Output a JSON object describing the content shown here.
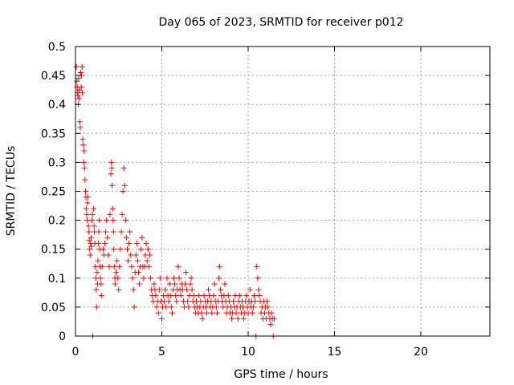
{
  "chart_data": {
    "type": "scatter",
    "title": "Day 065 of 2023, SRMTID for receiver p012",
    "xlabel": "GPS time / hours",
    "ylabel": "SRMTID / TECUs",
    "xlim": [
      0,
      24
    ],
    "ylim": [
      0,
      0.5
    ],
    "x_ticks": [
      0,
      5,
      10,
      15,
      20
    ],
    "y_ticks": [
      0,
      0.05,
      0.1,
      0.15,
      0.2,
      0.25,
      0.3,
      0.35,
      0.4,
      0.45,
      0.5
    ],
    "x_tick_labels": [
      "0",
      "5",
      "10",
      "15",
      "20"
    ],
    "y_tick_labels": [
      "0",
      "0.05",
      "0.1",
      "0.15",
      "0.2",
      "0.25",
      "0.3",
      "0.35",
      "0.4",
      "0.45",
      "0.5"
    ],
    "grid": true,
    "marker": "+",
    "series": [
      {
        "name": "SRMTID",
        "color": "#ff0000",
        "points": [
          [
            0.05,
            0.465
          ],
          [
            0.08,
            0.44
          ],
          [
            0.1,
            0.43
          ],
          [
            0.12,
            0.42
          ],
          [
            0.14,
            0.415
          ],
          [
            0.16,
            0.4
          ],
          [
            0.18,
            0.445
          ],
          [
            0.2,
            0.41
          ],
          [
            0.22,
            0.425
          ],
          [
            0.25,
            0.37
          ],
          [
            0.28,
            0.36
          ],
          [
            0.3,
            0.455
          ],
          [
            0.33,
            0.43
          ],
          [
            0.35,
            0.45
          ],
          [
            0.38,
            0.465
          ],
          [
            0.4,
            0.42
          ],
          [
            0.42,
            0.34
          ],
          [
            0.45,
            0.33
          ],
          [
            0.48,
            0.3
          ],
          [
            0.5,
            0.32
          ],
          [
            0.52,
            0.29
          ],
          [
            0.55,
            0.27
          ],
          [
            0.58,
            0.25
          ],
          [
            0.6,
            0.24
          ],
          [
            0.62,
            0.22
          ],
          [
            0.65,
            0.21
          ],
          [
            0.68,
            0.2
          ],
          [
            0.7,
            0.23
          ],
          [
            0.72,
            0.24
          ],
          [
            0.75,
            0.19
          ],
          [
            0.78,
            0.18
          ],
          [
            0.8,
            0.165
          ],
          [
            0.82,
            0.15
          ],
          [
            0.85,
            0.14
          ],
          [
            0.88,
            0.16
          ],
          [
            0.9,
            0.17
          ],
          [
            0.92,
            0.155
          ],
          [
            0.95,
            0.2
          ],
          [
            0.98,
            0.21
          ],
          [
            1.0,
            0.0
          ],
          [
            1.05,
            0.22
          ],
          [
            1.08,
            0.19
          ],
          [
            1.1,
            0.18
          ],
          [
            1.12,
            0.16
          ],
          [
            1.15,
            0.12
          ],
          [
            1.18,
            0.1
          ],
          [
            1.2,
            0.08
          ],
          [
            1.22,
            0.05
          ],
          [
            1.25,
            0.11
          ],
          [
            1.28,
            0.09
          ],
          [
            1.3,
            0.13
          ],
          [
            1.33,
            0.16
          ],
          [
            1.35,
            0.18
          ],
          [
            1.38,
            0.2
          ],
          [
            1.4,
            0.15
          ],
          [
            1.42,
            0.12
          ],
          [
            1.45,
            0.1
          ],
          [
            1.48,
            0.09
          ],
          [
            1.5,
            0.07
          ],
          [
            1.55,
            0.12
          ],
          [
            1.6,
            0.15
          ],
          [
            1.65,
            0.14
          ],
          [
            1.7,
            0.16
          ],
          [
            1.75,
            0.18
          ],
          [
            1.8,
            0.2
          ],
          [
            1.85,
            0.17
          ],
          [
            1.9,
            0.14
          ],
          [
            1.95,
            0.12
          ],
          [
            2.0,
            0.21
          ],
          [
            2.05,
            0.28
          ],
          [
            2.08,
            0.3
          ],
          [
            2.1,
            0.29
          ],
          [
            2.12,
            0.26
          ],
          [
            2.15,
            0.22
          ],
          [
            2.18,
            0.2
          ],
          [
            2.2,
            0.18
          ],
          [
            2.22,
            0.15
          ],
          [
            2.25,
            0.12
          ],
          [
            2.28,
            0.1
          ],
          [
            2.3,
            0.09
          ],
          [
            2.35,
            0.11
          ],
          [
            2.4,
            0.13
          ],
          [
            2.45,
            0.1
          ],
          [
            2.5,
            0.08
          ],
          [
            2.55,
            0.12
          ],
          [
            2.6,
            0.15
          ],
          [
            2.65,
            0.18
          ],
          [
            2.7,
            0.21
          ],
          [
            2.75,
            0.25
          ],
          [
            2.8,
            0.29
          ],
          [
            2.85,
            0.26
          ],
          [
            2.9,
            0.2
          ],
          [
            2.95,
            0.17
          ],
          [
            3.0,
            0.15
          ],
          [
            3.05,
            0.13
          ],
          [
            3.1,
            0.16
          ],
          [
            3.15,
            0.18
          ],
          [
            3.2,
            0.14
          ],
          [
            3.25,
            0.12
          ],
          [
            3.3,
            0.1
          ],
          [
            3.35,
            0.08
          ],
          [
            3.4,
            0.05
          ],
          [
            3.45,
            0.11
          ],
          [
            3.5,
            0.14
          ],
          [
            3.55,
            0.16
          ],
          [
            3.6,
            0.13
          ],
          [
            3.65,
            0.11
          ],
          [
            3.7,
            0.09
          ],
          [
            3.75,
            0.12
          ],
          [
            3.8,
            0.15
          ],
          [
            3.85,
            0.17
          ],
          [
            3.9,
            0.12
          ],
          [
            3.95,
            0.1
          ],
          [
            4.0,
            0.12
          ],
          [
            4.05,
            0.14
          ],
          [
            4.1,
            0.16
          ],
          [
            4.15,
            0.13
          ],
          [
            4.2,
            0.15
          ],
          [
            4.25,
            0.12
          ],
          [
            4.3,
            0.14
          ],
          [
            4.35,
            0.1
          ],
          [
            4.4,
            0.08
          ],
          [
            4.45,
            0.07
          ],
          [
            4.5,
            0.06
          ],
          [
            4.55,
            0.09
          ],
          [
            4.6,
            0.08
          ],
          [
            4.65,
            0.07
          ],
          [
            4.7,
            0.05
          ],
          [
            4.75,
            0.06
          ],
          [
            4.8,
            0.04
          ],
          [
            4.85,
            0.08
          ],
          [
            4.9,
            0.1
          ],
          [
            4.95,
            0.06
          ],
          [
            5.0,
            0.03
          ],
          [
            5.05,
            0.05
          ],
          [
            5.1,
            0.07
          ],
          [
            5.15,
            0.06
          ],
          [
            5.2,
            0.08
          ],
          [
            5.25,
            0.05
          ],
          [
            5.3,
            0.1
          ],
          [
            5.35,
            0.07
          ],
          [
            5.4,
            0.06
          ],
          [
            5.45,
            0.09
          ],
          [
            5.5,
            0.07
          ],
          [
            5.55,
            0.05
          ],
          [
            5.6,
            0.04
          ],
          [
            5.65,
            0.08
          ],
          [
            5.7,
            0.1
          ],
          [
            5.75,
            0.09
          ],
          [
            5.8,
            0.07
          ],
          [
            5.85,
            0.06
          ],
          [
            5.9,
            0.08
          ],
          [
            5.95,
            0.12
          ],
          [
            6.0,
            0.1
          ],
          [
            6.05,
            0.08
          ],
          [
            6.1,
            0.07
          ],
          [
            6.15,
            0.09
          ],
          [
            6.2,
            0.08
          ],
          [
            6.25,
            0.06
          ],
          [
            6.3,
            0.05
          ],
          [
            6.35,
            0.09
          ],
          [
            6.4,
            0.11
          ],
          [
            6.45,
            0.08
          ],
          [
            6.5,
            0.06
          ],
          [
            6.55,
            0.05
          ],
          [
            6.6,
            0.07
          ],
          [
            6.65,
            0.09
          ],
          [
            6.7,
            0.1
          ],
          [
            6.75,
            0.08
          ],
          [
            6.8,
            0.06
          ],
          [
            6.85,
            0.07
          ],
          [
            6.9,
            0.05
          ],
          [
            6.95,
            0.04
          ],
          [
            7.0,
            0.06
          ],
          [
            7.05,
            0.05
          ],
          [
            7.1,
            0.04
          ],
          [
            7.15,
            0.07
          ],
          [
            7.2,
            0.05
          ],
          [
            7.25,
            0.06
          ],
          [
            7.3,
            0.04
          ],
          [
            7.35,
            0.03
          ],
          [
            7.4,
            0.05
          ],
          [
            7.45,
            0.07
          ],
          [
            7.5,
            0.06
          ],
          [
            7.55,
            0.05
          ],
          [
            7.6,
            0.04
          ],
          [
            7.65,
            0.06
          ],
          [
            7.7,
            0.08
          ],
          [
            7.75,
            0.07
          ],
          [
            7.8,
            0.05
          ],
          [
            7.85,
            0.06
          ],
          [
            7.9,
            0.04
          ],
          [
            7.95,
            0.05
          ],
          [
            8.0,
            0.07
          ],
          [
            8.05,
            0.09
          ],
          [
            8.1,
            0.06
          ],
          [
            8.15,
            0.05
          ],
          [
            8.2,
            0.04
          ],
          [
            8.25,
            0.06
          ],
          [
            8.3,
            0.1
          ],
          [
            8.35,
            0.12
          ],
          [
            8.4,
            0.08
          ],
          [
            8.45,
            0.07
          ],
          [
            8.5,
            0.06
          ],
          [
            8.55,
            0.05
          ],
          [
            8.6,
            0.07
          ],
          [
            8.65,
            0.09
          ],
          [
            8.7,
            0.06
          ],
          [
            8.75,
            0.04
          ],
          [
            8.8,
            0.05
          ],
          [
            8.85,
            0.07
          ],
          [
            8.9,
            0.06
          ],
          [
            8.95,
            0.04
          ],
          [
            9.0,
            0.05
          ],
          [
            9.05,
            0.03
          ],
          [
            9.1,
            0.04
          ],
          [
            9.15,
            0.06
          ],
          [
            9.2,
            0.05
          ],
          [
            9.25,
            0.07
          ],
          [
            9.3,
            0.04
          ],
          [
            9.35,
            0.05
          ],
          [
            9.4,
            0.03
          ],
          [
            9.45,
            0.06
          ],
          [
            9.5,
            0.07
          ],
          [
            9.55,
            0.05
          ],
          [
            9.6,
            0.04
          ],
          [
            9.65,
            0.06
          ],
          [
            9.7,
            0.05
          ],
          [
            9.75,
            0.03
          ],
          [
            9.8,
            0.04
          ],
          [
            9.85,
            0.06
          ],
          [
            9.9,
            0.07
          ],
          [
            9.95,
            0.05
          ],
          [
            10.0,
            0.04
          ],
          [
            10.05,
            0.06
          ],
          [
            10.1,
            0.08
          ],
          [
            10.15,
            0.05
          ],
          [
            10.2,
            0.06
          ],
          [
            10.25,
            0.04
          ],
          [
            10.3,
            0.05
          ],
          [
            10.35,
            0.07
          ],
          [
            10.4,
            0.06
          ],
          [
            10.45,
            0.0
          ],
          [
            10.5,
            0.12
          ],
          [
            10.55,
            0.1
          ],
          [
            10.6,
            0.08
          ],
          [
            10.65,
            0.07
          ],
          [
            10.7,
            0.06
          ],
          [
            10.75,
            0.04
          ],
          [
            10.8,
            0.05
          ],
          [
            10.85,
            0.03
          ],
          [
            10.9,
            0.06
          ],
          [
            10.95,
            0.04
          ],
          [
            11.0,
            0.05
          ],
          [
            11.05,
            0.03
          ],
          [
            11.1,
            0.06
          ],
          [
            11.15,
            0.05
          ],
          [
            11.2,
            0.04
          ],
          [
            11.25,
            0.03
          ],
          [
            11.3,
            0.02
          ],
          [
            11.35,
            0.04
          ],
          [
            11.4,
            0.03
          ],
          [
            11.45,
            0.0
          ],
          [
            11.5,
            0.03
          ]
        ]
      }
    ]
  }
}
